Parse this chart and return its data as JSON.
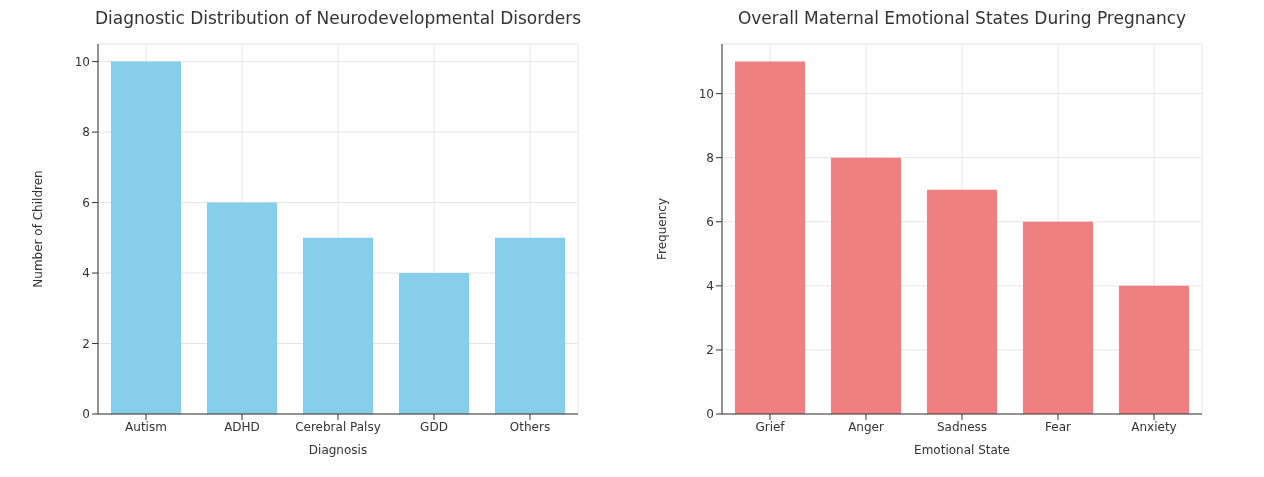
{
  "chart_data": [
    {
      "type": "bar",
      "title": "Diagnostic Distribution of Neurodevelopmental Disorders",
      "xlabel": "Diagnosis",
      "ylabel": "Number of Children",
      "categories": [
        "Autism",
        "ADHD",
        "Cerebral Palsy",
        "GDD",
        "Others"
      ],
      "values": [
        10,
        6,
        5,
        4,
        5
      ],
      "color": "#87ceeb",
      "ylim": [
        0,
        10.5
      ],
      "yticks": [
        0,
        2,
        4,
        6,
        8,
        10
      ],
      "grid": true
    },
    {
      "type": "bar",
      "title": "Overall Maternal Emotional States During Pregnancy",
      "xlabel": "Emotional State",
      "ylabel": "Frequency",
      "categories": [
        "Grief",
        "Anger",
        "Sadness",
        "Fear",
        "Anxiety"
      ],
      "values": [
        11,
        8,
        7,
        6,
        4
      ],
      "color": "#f08080",
      "ylim": [
        0,
        11.55
      ],
      "yticks": [
        0,
        2,
        4,
        6,
        8,
        10
      ],
      "grid": true
    }
  ]
}
